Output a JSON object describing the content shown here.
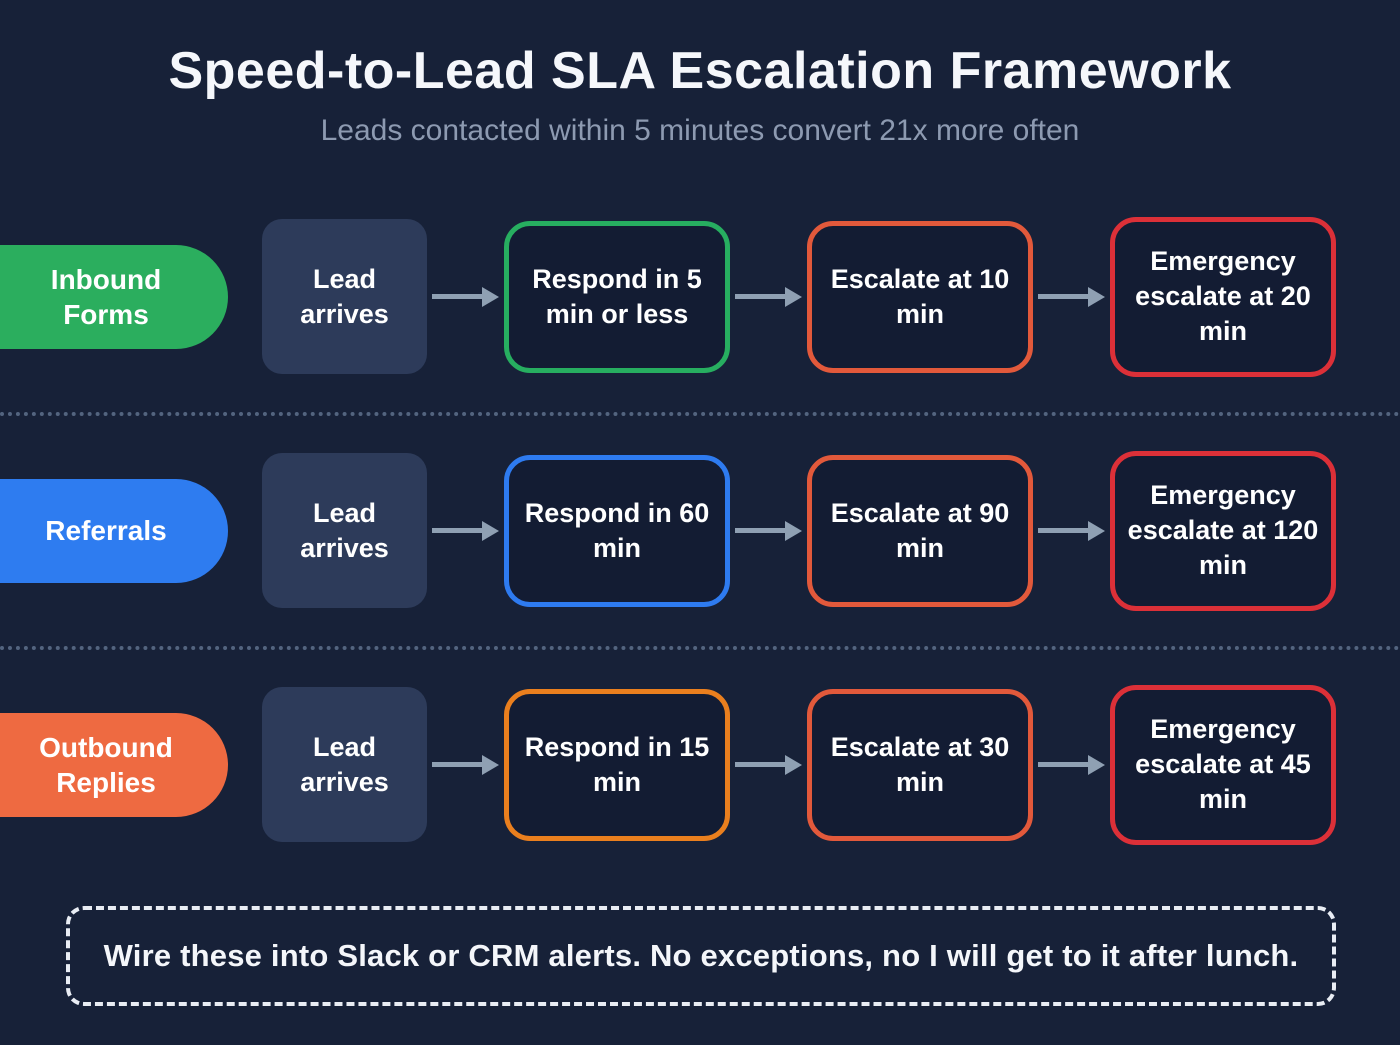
{
  "header": {
    "title": "Speed-to-Lead SLA Escalation Framework",
    "subtitle": "Leads contacted within 5 minutes convert 21x more often"
  },
  "rows": [
    {
      "label": "Inbound Forms",
      "colors": {
        "pill": "#2bae5e",
        "respond": "#27ae60",
        "escalate": "#e2593b",
        "emergency": "#dc3038"
      },
      "steps": {
        "arrival": "Lead arrives",
        "respond": "Respond in 5 min or less",
        "escalate": "Escalate at 10 min",
        "emergency": "Emergency escalate at 20 min"
      }
    },
    {
      "label": "Referrals",
      "colors": {
        "pill": "#2e7cf0",
        "respond": "#2e7bf0",
        "escalate": "#e2593b",
        "emergency": "#dc3038"
      },
      "steps": {
        "arrival": "Lead arrives",
        "respond": "Respond in 60 min",
        "escalate": "Escalate at 90 min",
        "emergency": "Emergency escalate at 120 min"
      }
    },
    {
      "label": "Outbound Replies",
      "colors": {
        "pill": "#ee6a41",
        "respond": "#ea7f1e",
        "escalate": "#e2593b",
        "emergency": "#dc3038"
      },
      "steps": {
        "arrival": "Lead arrives",
        "respond": "Respond in 15 min",
        "escalate": "Escalate at 30 min",
        "emergency": "Emergency escalate at 45 min"
      }
    }
  ],
  "footer": {
    "note": "Wire these into Slack or CRM alerts. No exceptions, no I will get to it after lunch."
  },
  "theme": {
    "background": "#172138",
    "arrival_box_fill": "#2d3b5a",
    "outlined_box_fill": "#131c33",
    "arrow_color": "#8fa0b3",
    "divider_color": "#53647f",
    "title_color": "#f5f7fb",
    "subtitle_color": "#8d9ab1"
  }
}
